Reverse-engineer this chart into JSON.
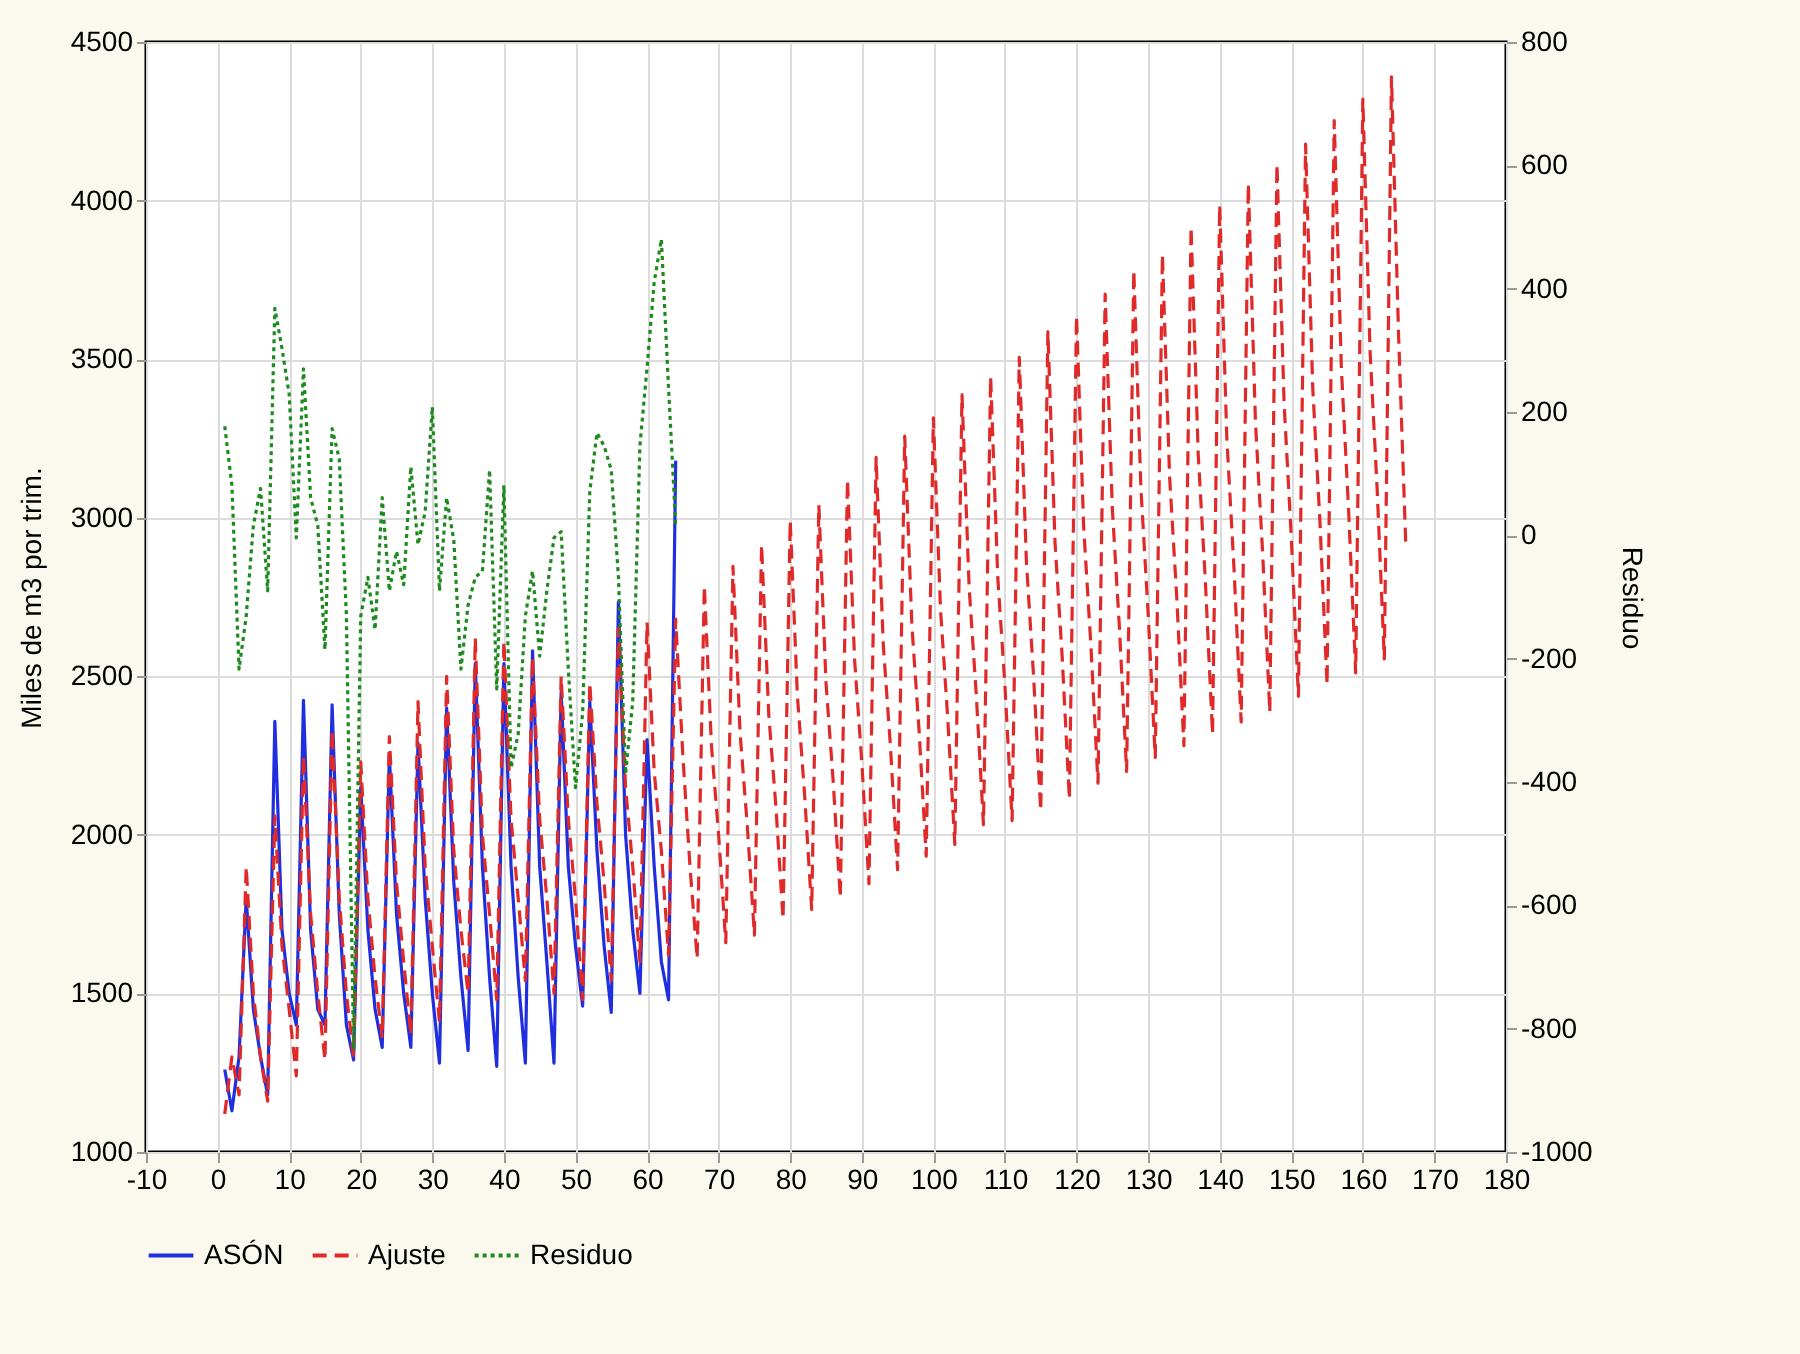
{
  "chart_data": {
    "type": "line",
    "ylabel": "Miles de m3 por trim.",
    "y2label": "Residuo",
    "xlim": [
      -10,
      180
    ],
    "xticks": [
      -10,
      0,
      10,
      20,
      30,
      40,
      50,
      60,
      70,
      80,
      90,
      100,
      110,
      120,
      130,
      140,
      150,
      160,
      170,
      180
    ],
    "ylim": [
      1000,
      4500
    ],
    "yticks": [
      1000,
      1500,
      2000,
      2500,
      3000,
      3500,
      4000,
      4500
    ],
    "y2lim": [
      -1000,
      800
    ],
    "y2ticks": [
      -1000,
      -800,
      -600,
      -400,
      -200,
      0,
      200,
      400,
      600,
      800
    ],
    "grid": true,
    "legend": "bottom",
    "marker": "none",
    "series": [
      {
        "name": "ASÓN",
        "color": "#1f2fe0",
        "line_style": "solid",
        "x": [
          1,
          2,
          3,
          4,
          5,
          6,
          7,
          8,
          9,
          10,
          11,
          12,
          13,
          14,
          15,
          16,
          17,
          18,
          19,
          20,
          21,
          22,
          23,
          24,
          25,
          26,
          27,
          28,
          29,
          30,
          31,
          32,
          33,
          34,
          35,
          36,
          37,
          38,
          39,
          40,
          41,
          42,
          43,
          44,
          45,
          46,
          47,
          48,
          49,
          50,
          51,
          52,
          53,
          54,
          55,
          56,
          57,
          58,
          59,
          60,
          61,
          62,
          63,
          64
        ],
        "values": [
          1260,
          1130,
          1300,
          1800,
          1450,
          1300,
          1180,
          2358,
          1700,
          1500,
          1400,
          2424,
          1700,
          1450,
          1400,
          2410,
          1750,
          1400,
          1290,
          2150,
          1700,
          1450,
          1330,
          2250,
          1750,
          1500,
          1330,
          2290,
          1800,
          1500,
          1280,
          2400,
          1850,
          1550,
          1320,
          2540,
          1900,
          1550,
          1270,
          2540,
          1900,
          1550,
          1280,
          2580,
          1900,
          1600,
          1280,
          2450,
          1900,
          1650,
          1460,
          2420,
          1950,
          1650,
          1440,
          2735,
          2000,
          1700,
          1500,
          2300,
          1900,
          1600,
          1480,
          3180
        ]
      },
      {
        "name": "Ajuste",
        "color": "#e02a2a",
        "line_style": "dashed",
        "x": [
          1,
          2,
          3,
          4,
          5,
          6,
          7,
          8,
          9,
          10,
          11,
          12,
          13,
          14,
          15,
          16,
          17,
          18,
          19,
          20,
          21,
          22,
          23,
          24,
          25,
          26,
          27,
          28,
          29,
          30,
          31,
          32,
          33,
          34,
          35,
          36,
          37,
          38,
          39,
          40,
          41,
          42,
          43,
          44,
          45,
          46,
          47,
          48,
          49,
          50,
          51,
          52,
          53,
          54,
          55,
          56,
          57,
          58,
          59,
          60,
          61,
          62,
          63,
          64,
          65,
          66,
          67,
          68,
          69,
          70,
          71,
          72,
          73,
          74,
          75,
          76,
          77,
          78,
          79,
          80,
          81,
          82,
          83,
          84,
          85,
          86,
          87,
          88,
          89,
          90,
          91,
          92,
          93,
          94,
          95,
          96,
          97,
          98,
          99,
          100,
          101,
          102,
          103,
          104,
          105,
          106,
          107,
          108,
          109,
          110,
          111,
          112,
          113,
          114,
          115,
          116,
          117,
          118,
          119,
          120,
          121,
          122,
          123,
          124,
          125,
          126,
          127,
          128,
          129,
          130,
          131,
          132,
          133,
          134,
          135,
          136,
          137,
          138,
          139,
          140,
          141,
          142,
          143,
          144,
          145,
          146,
          147,
          148,
          149,
          150,
          151,
          152,
          153,
          154,
          155,
          156,
          157,
          158,
          159,
          160,
          161,
          162,
          163,
          164,
          165,
          166
        ],
        "values": [
          1120,
          1300,
          1180,
          1900,
          1500,
          1300,
          1160,
          2060,
          1650,
          1450,
          1240,
          2250,
          1750,
          1500,
          1290,
          2330,
          1800,
          1500,
          1300,
          2230,
          1800,
          1550,
          1360,
          2310,
          1850,
          1600,
          1370,
          2420,
          1900,
          1650,
          1410,
          2500,
          1950,
          1700,
          1500,
          2620,
          2000,
          1750,
          1480,
          2610,
          2050,
          1800,
          1540,
          2560,
          2050,
          1800,
          1500,
          2500,
          2050,
          1800,
          1480,
          2480,
          2100,
          1850,
          1540,
          2650,
          2150,
          1900,
          1600,
          2670,
          2200,
          1950,
          1620,
          2680,
          2250,
          1900,
          1610,
          2785,
          2280,
          2000,
          1660,
          2847,
          2320,
          2030,
          1684,
          2915,
          2380,
          2090,
          1734,
          2990,
          2440,
          2130,
          1765,
          3040,
          2480,
          2170,
          1802,
          3120,
          2550,
          2230,
          1846,
          3190,
          2600,
          2280,
          1890,
          3257,
          2660,
          2330,
          1933,
          3315,
          2710,
          2370,
          1970,
          3388,
          2780,
          2440,
          2032,
          3444,
          2810,
          2470,
          2045,
          3506,
          2860,
          2500,
          2076,
          3587,
          2920,
          2560,
          2113,
          3637,
          2970,
          2600,
          2163,
          3705,
          3030,
          2650,
          2200,
          3780,
          3090,
          2700,
          2244,
          3830,
          3130,
          2750,
          2281,
          3917,
          3200,
          2800,
          2318,
          3985,
          3250,
          2840,
          2356,
          4053,
          3300,
          2890,
          2387,
          4115,
          3360,
          2940,
          2437,
          4178,
          3410,
          2990,
          2474,
          4252,
          3470,
          3030,
          2511,
          4320,
          3530,
          3090,
          2555,
          4390,
          3570,
          2915
        ]
      },
      {
        "name": "Residuo",
        "color": "#1e8a1e",
        "line_style": "dotted",
        "axis": "y2",
        "x": [
          1,
          2,
          3,
          4,
          5,
          6,
          7,
          8,
          9,
          10,
          11,
          12,
          13,
          14,
          15,
          16,
          17,
          18,
          19,
          20,
          21,
          22,
          23,
          24,
          25,
          26,
          27,
          28,
          29,
          30,
          31,
          32,
          33,
          34,
          35,
          36,
          37,
          38,
          39,
          40,
          41,
          42,
          43,
          44,
          45,
          46,
          47,
          48,
          49,
          50,
          51,
          52,
          53,
          54,
          55,
          56,
          57,
          58,
          59,
          60,
          61,
          62,
          63,
          64
        ],
        "values": [
          177,
          81,
          -217,
          -131,
          16,
          76,
          -90,
          368,
          303,
          229,
          -4,
          270,
          61,
          16,
          -185,
          173,
          124,
          -131,
          -834,
          -131,
          -68,
          -153,
          61,
          -90,
          -26,
          -80,
          111,
          -15,
          38,
          208,
          -90,
          61,
          -8,
          -217,
          -113,
          -68,
          -58,
          106,
          -249,
          81,
          -377,
          -322,
          -131,
          -58,
          -196,
          -90,
          -4,
          6,
          -217,
          -409,
          -288,
          71,
          166,
          145,
          106,
          -68,
          -387,
          -269,
          145,
          272,
          411,
          480,
          240,
          16
        ]
      }
    ]
  }
}
